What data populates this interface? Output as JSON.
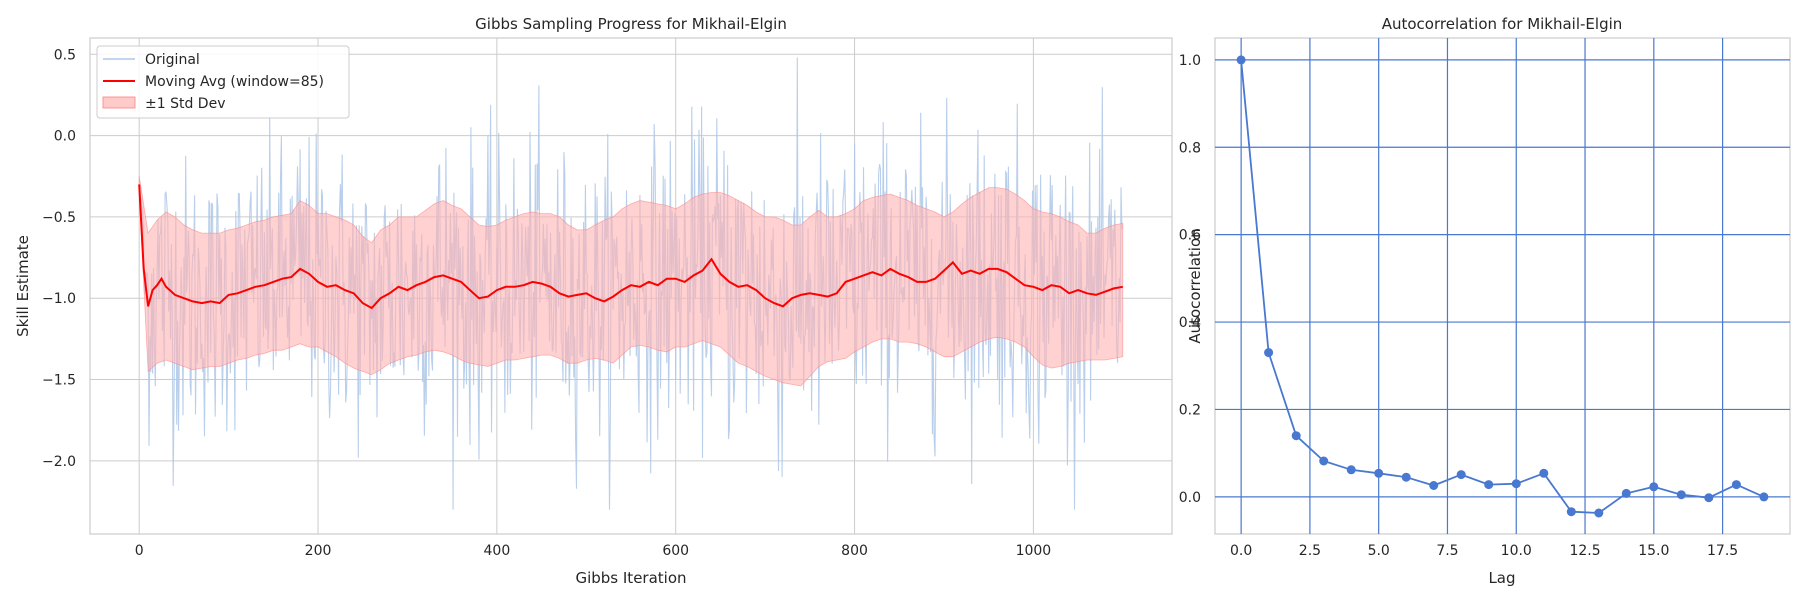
{
  "chart_data": [
    {
      "type": "line",
      "title": "Gibbs Sampling Progress for Mikhail-Elgin",
      "xlabel": "Gibbs Iteration",
      "ylabel": "Skill Estimate",
      "xlim": [
        -55,
        1155
      ],
      "ylim": [
        -2.45,
        0.6
      ],
      "xticks": [
        0,
        200,
        400,
        600,
        800,
        1000
      ],
      "xtick_labels": [
        "0",
        "200",
        "400",
        "600",
        "800",
        "1000"
      ],
      "yticks": [
        0.5,
        0.0,
        -0.5,
        -1.0,
        -1.5,
        -2.0
      ],
      "ytick_labels": [
        "0.5",
        "0.0",
        "−0.5",
        "−1.0",
        "−1.5",
        "−2.0"
      ],
      "grid": true,
      "legend_position": "top-left",
      "legend": [
        "Original",
        "Moving Avg (window=85)",
        "±1 Std Dev"
      ],
      "colors": {
        "original": "#aec7e8",
        "moving_avg": "#ff0000",
        "band_fill": "#ffb3b3"
      },
      "n_iterations": 1100,
      "moving_avg": {
        "x": [
          0,
          5,
          10,
          15,
          20,
          25,
          30,
          40,
          50,
          60,
          70,
          80,
          90,
          100,
          110,
          120,
          130,
          140,
          150,
          160,
          170,
          180,
          190,
          200,
          210,
          220,
          230,
          240,
          250,
          260,
          270,
          280,
          290,
          300,
          310,
          320,
          330,
          340,
          350,
          360,
          370,
          380,
          390,
          400,
          410,
          420,
          430,
          440,
          450,
          460,
          470,
          480,
          490,
          500,
          510,
          520,
          530,
          540,
          550,
          560,
          570,
          580,
          590,
          600,
          610,
          620,
          630,
          640,
          650,
          660,
          670,
          680,
          690,
          700,
          710,
          720,
          730,
          740,
          750,
          760,
          770,
          780,
          790,
          800,
          810,
          820,
          830,
          840,
          850,
          860,
          870,
          880,
          890,
          900,
          910,
          920,
          930,
          940,
          950,
          960,
          970,
          980,
          990,
          1000,
          1010,
          1020,
          1030,
          1040,
          1050,
          1060,
          1070,
          1080,
          1090,
          1100
        ],
        "y": [
          -0.3,
          -0.82,
          -1.05,
          -0.95,
          -0.92,
          -0.88,
          -0.93,
          -0.98,
          -1.0,
          -1.02,
          -1.03,
          -1.02,
          -1.03,
          -0.98,
          -0.97,
          -0.95,
          -0.93,
          -0.92,
          -0.9,
          -0.88,
          -0.87,
          -0.82,
          -0.85,
          -0.9,
          -0.93,
          -0.92,
          -0.95,
          -0.97,
          -1.03,
          -1.06,
          -1.0,
          -0.97,
          -0.93,
          -0.95,
          -0.92,
          -0.9,
          -0.87,
          -0.86,
          -0.88,
          -0.9,
          -0.95,
          -1.0,
          -0.99,
          -0.95,
          -0.93,
          -0.93,
          -0.92,
          -0.9,
          -0.91,
          -0.93,
          -0.97,
          -0.99,
          -0.98,
          -0.97,
          -1.0,
          -1.02,
          -0.99,
          -0.95,
          -0.92,
          -0.93,
          -0.9,
          -0.92,
          -0.88,
          -0.88,
          -0.9,
          -0.86,
          -0.83,
          -0.76,
          -0.85,
          -0.9,
          -0.93,
          -0.92,
          -0.95,
          -1.0,
          -1.03,
          -1.05,
          -1.0,
          -0.98,
          -0.97,
          -0.98,
          -0.99,
          -0.97,
          -0.9,
          -0.88,
          -0.86,
          -0.84,
          -0.86,
          -0.82,
          -0.85,
          -0.87,
          -0.9,
          -0.9,
          -0.88,
          -0.83,
          -0.78,
          -0.85,
          -0.83,
          -0.85,
          -0.82,
          -0.82,
          -0.84,
          -0.88,
          -0.92,
          -0.93,
          -0.95,
          -0.92,
          -0.93,
          -0.97,
          -0.95,
          -0.97,
          -0.98,
          -0.96,
          -0.94,
          -0.93
        ]
      },
      "std_band": {
        "x": [
          0,
          10,
          20,
          30,
          40,
          50,
          60,
          70,
          80,
          90,
          100,
          110,
          120,
          130,
          140,
          150,
          160,
          170,
          180,
          190,
          200,
          210,
          220,
          230,
          240,
          250,
          260,
          270,
          280,
          290,
          300,
          310,
          320,
          330,
          340,
          350,
          360,
          370,
          380,
          390,
          400,
          410,
          420,
          430,
          440,
          450,
          460,
          470,
          480,
          490,
          500,
          510,
          520,
          530,
          540,
          550,
          560,
          570,
          580,
          590,
          600,
          610,
          620,
          630,
          640,
          650,
          660,
          670,
          680,
          690,
          700,
          710,
          720,
          730,
          740,
          750,
          760,
          770,
          780,
          790,
          800,
          810,
          820,
          830,
          840,
          850,
          860,
          870,
          880,
          890,
          900,
          910,
          920,
          930,
          940,
          950,
          960,
          970,
          980,
          990,
          1000,
          1010,
          1020,
          1030,
          1040,
          1050,
          1060,
          1070,
          1080,
          1090,
          1100
        ],
        "lower": [
          -0.35,
          -1.45,
          -1.4,
          -1.38,
          -1.4,
          -1.42,
          -1.44,
          -1.43,
          -1.42,
          -1.42,
          -1.4,
          -1.38,
          -1.37,
          -1.35,
          -1.34,
          -1.32,
          -1.32,
          -1.3,
          -1.28,
          -1.3,
          -1.3,
          -1.33,
          -1.36,
          -1.4,
          -1.43,
          -1.45,
          -1.47,
          -1.44,
          -1.4,
          -1.38,
          -1.36,
          -1.35,
          -1.33,
          -1.32,
          -1.33,
          -1.35,
          -1.38,
          -1.4,
          -1.41,
          -1.42,
          -1.4,
          -1.38,
          -1.38,
          -1.37,
          -1.36,
          -1.35,
          -1.35,
          -1.37,
          -1.4,
          -1.4,
          -1.38,
          -1.37,
          -1.38,
          -1.4,
          -1.35,
          -1.3,
          -1.29,
          -1.3,
          -1.32,
          -1.33,
          -1.3,
          -1.3,
          -1.28,
          -1.26,
          -1.28,
          -1.3,
          -1.35,
          -1.4,
          -1.42,
          -1.45,
          -1.48,
          -1.5,
          -1.52,
          -1.53,
          -1.54,
          -1.48,
          -1.42,
          -1.39,
          -1.38,
          -1.37,
          -1.33,
          -1.3,
          -1.27,
          -1.25,
          -1.25,
          -1.27,
          -1.27,
          -1.28,
          -1.3,
          -1.33,
          -1.36,
          -1.36,
          -1.33,
          -1.3,
          -1.27,
          -1.25,
          -1.24,
          -1.25,
          -1.27,
          -1.3,
          -1.36,
          -1.41,
          -1.43,
          -1.42,
          -1.4,
          -1.39,
          -1.38,
          -1.38,
          -1.38,
          -1.37,
          -1.36
        ],
        "upper": [
          -0.25,
          -0.6,
          -0.52,
          -0.47,
          -0.5,
          -0.55,
          -0.58,
          -0.6,
          -0.6,
          -0.6,
          -0.58,
          -0.57,
          -0.55,
          -0.53,
          -0.52,
          -0.5,
          -0.49,
          -0.48,
          -0.4,
          -0.43,
          -0.48,
          -0.48,
          -0.5,
          -0.52,
          -0.55,
          -0.62,
          -0.66,
          -0.58,
          -0.55,
          -0.5,
          -0.5,
          -0.5,
          -0.46,
          -0.42,
          -0.4,
          -0.43,
          -0.45,
          -0.5,
          -0.55,
          -0.56,
          -0.55,
          -0.52,
          -0.5,
          -0.48,
          -0.47,
          -0.48,
          -0.48,
          -0.5,
          -0.55,
          -0.58,
          -0.58,
          -0.55,
          -0.52,
          -0.5,
          -0.45,
          -0.42,
          -0.4,
          -0.41,
          -0.42,
          -0.43,
          -0.45,
          -0.42,
          -0.38,
          -0.36,
          -0.35,
          -0.35,
          -0.37,
          -0.4,
          -0.43,
          -0.47,
          -0.5,
          -0.5,
          -0.52,
          -0.55,
          -0.55,
          -0.5,
          -0.46,
          -0.5,
          -0.5,
          -0.48,
          -0.45,
          -0.4,
          -0.38,
          -0.37,
          -0.36,
          -0.38,
          -0.4,
          -0.43,
          -0.45,
          -0.47,
          -0.5,
          -0.47,
          -0.42,
          -0.38,
          -0.35,
          -0.32,
          -0.32,
          -0.33,
          -0.36,
          -0.4,
          -0.45,
          -0.47,
          -0.48,
          -0.5,
          -0.53,
          -0.55,
          -0.6,
          -0.6,
          -0.57,
          -0.55,
          -0.54
        ]
      }
    },
    {
      "type": "line",
      "title": "Autocorrelation for Mikhail-Elgin",
      "xlabel": "Lag",
      "ylabel": "Autocorrelation",
      "xlim": [
        -0.95,
        19.95
      ],
      "ylim": [
        -0.085,
        1.05
      ],
      "xticks": [
        0,
        2.5,
        5,
        7.5,
        10,
        12.5,
        15,
        17.5
      ],
      "xtick_labels": [
        "0.0",
        "2.5",
        "5.0",
        "7.5",
        "10.0",
        "12.5",
        "15.0",
        "17.5"
      ],
      "yticks": [
        0.0,
        0.2,
        0.4,
        0.6,
        0.8,
        1.0
      ],
      "ytick_labels": [
        "0.0",
        "0.2",
        "0.4",
        "0.6",
        "0.8",
        "1.0"
      ],
      "grid": true,
      "marker": "o",
      "colors": {
        "line": "#4878d0",
        "grid": "#4878d0"
      },
      "x": [
        0,
        1,
        2,
        3,
        4,
        5,
        6,
        7,
        8,
        9,
        10,
        11,
        12,
        13,
        14,
        15,
        16,
        17,
        18,
        19
      ],
      "y": [
        1.0,
        0.33,
        0.14,
        0.082,
        0.062,
        0.054,
        0.045,
        0.026,
        0.051,
        0.028,
        0.03,
        0.054,
        -0.034,
        -0.037,
        0.008,
        0.023,
        0.005,
        -0.002,
        0.028,
        0.0
      ]
    }
  ]
}
